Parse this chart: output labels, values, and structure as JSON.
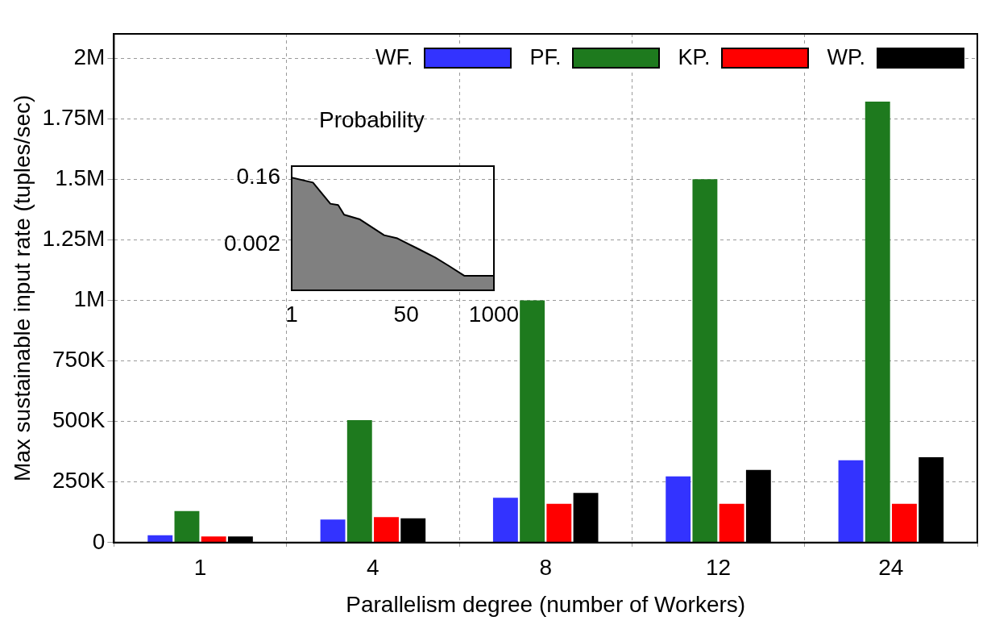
{
  "chart_data": [
    {
      "type": "bar",
      "xlabel": "Parallelism degree (number of Workers)",
      "ylabel": "Max sustainable input rate (tuples/sec)",
      "categories": [
        "1",
        "4",
        "8",
        "12",
        "24"
      ],
      "series": [
        {
          "name": "WF.",
          "color": "#3333ff",
          "values": [
            30000,
            95000,
            185000,
            273000,
            340000
          ]
        },
        {
          "name": "PF.",
          "color": "#1e7a1e",
          "values": [
            130000,
            505000,
            1000000,
            1500000,
            1820000
          ]
        },
        {
          "name": "KP.",
          "color": "#ff0000",
          "values": [
            25000,
            105000,
            160000,
            160000,
            160000
          ]
        },
        {
          "name": "WP.",
          "color": "#000000",
          "values": [
            25000,
            100000,
            205000,
            300000,
            352000
          ]
        }
      ],
      "ylim": [
        0,
        2100000
      ],
      "yticks": [
        0,
        {
          "value": 250000,
          "label": "250K"
        },
        {
          "value": 500000,
          "label": "500K"
        },
        {
          "value": 750000,
          "label": "750K"
        },
        {
          "value": 1000000,
          "label": "1M"
        },
        {
          "value": 1250000,
          "label": "1.25M"
        },
        {
          "value": 1500000,
          "label": "1.5M"
        },
        {
          "value": 1750000,
          "label": "1.75M"
        },
        {
          "value": 2000000,
          "label": "2M"
        }
      ],
      "grid": true,
      "legend": "top right"
    },
    {
      "type": "area",
      "title": "Probability",
      "color": "#808080",
      "log": "xy",
      "x": [
        1,
        2.07,
        3.75,
        4.9,
        6.0,
        10.3,
        23.5,
        37,
        71,
        135,
        213,
        363,
        1000
      ],
      "values": [
        0.16,
        0.116,
        0.029,
        0.0265,
        0.0141,
        0.0104,
        0.0037,
        0.003,
        0.0016,
        0.00085,
        0.0005,
        0.00026,
        0.00026
      ],
      "xlim": [
        1,
        1000
      ],
      "ylim": [
        0.0001,
        0.34
      ],
      "xticks": [
        1,
        50,
        1000
      ],
      "yticks": [
        0.16,
        0.002
      ]
    }
  ]
}
